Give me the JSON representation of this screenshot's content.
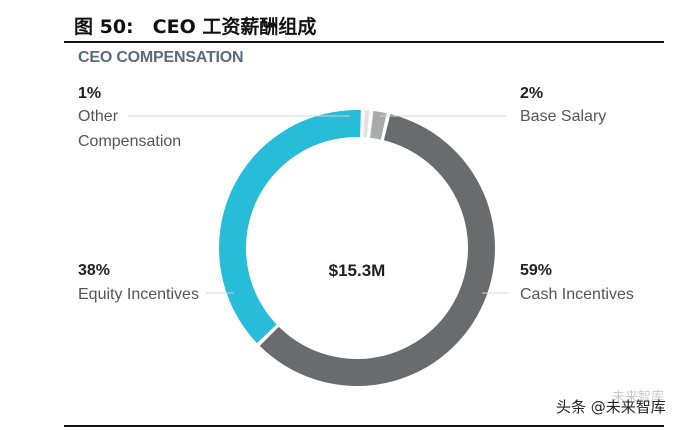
{
  "figure": {
    "title": "图 50:　CEO 工资薪酬组成"
  },
  "chart_data": {
    "type": "pie",
    "title": "CEO COMPENSATION",
    "donut": true,
    "center_text": "$15.3M",
    "slices": [
      {
        "name": "Base Salary",
        "value": 2,
        "label": "2%",
        "color": "#a8aaab"
      },
      {
        "name": "Cash Incentives",
        "value": 59,
        "label": "59%",
        "color": "#6a6b6d"
      },
      {
        "name": "Equity Incentives",
        "value": 38,
        "label": "38%",
        "color": "#27bcd8"
      },
      {
        "name": "Other Compensation",
        "value": 1,
        "label": "1%",
        "color": "#e3e3e3"
      }
    ],
    "label_names": {
      "other_line1": "Other",
      "other_line2": "Compensation"
    }
  },
  "watermark": {
    "text": "头条 @未来智库",
    "faint_text": "未来智库"
  }
}
